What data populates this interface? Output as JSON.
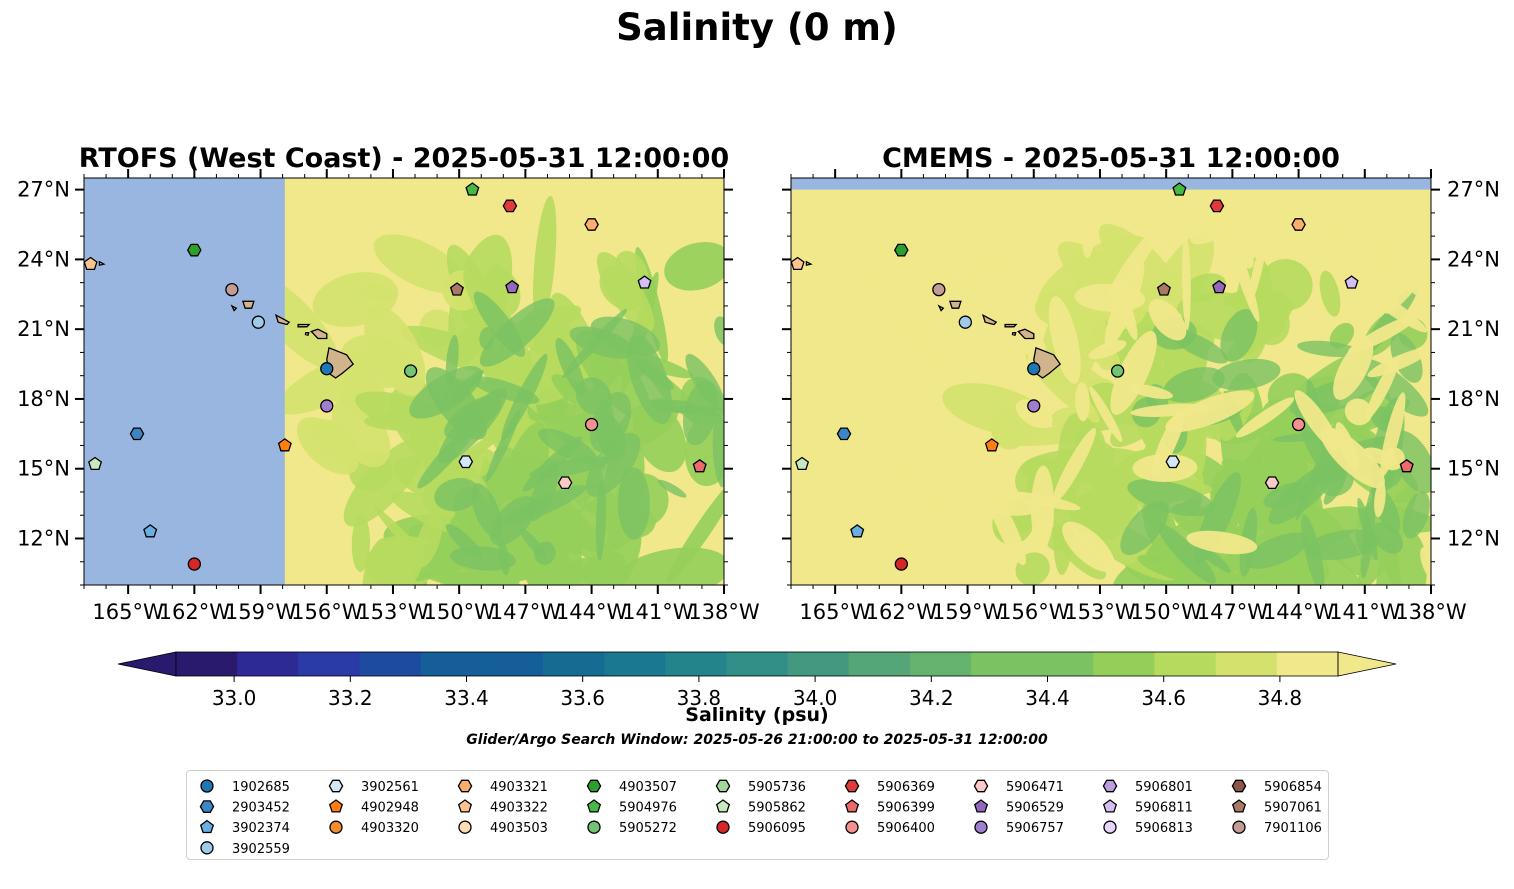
{
  "title": "Salinity (0 m)",
  "colors": {
    "land_fill": "#d2b48c",
    "out_of_domain": "#98b6e0",
    "salinity_levels": [
      "#2a1a6e",
      "#2d2a96",
      "#2a3aa6",
      "#1d4b9e",
      "#155e98",
      "#166b93",
      "#1a7890",
      "#23848c",
      "#318f87",
      "#42997f",
      "#54a577",
      "#66b36f",
      "#7bc263",
      "#95cf5a",
      "#b6da5e",
      "#d4e26d",
      "#f0e88a"
    ]
  },
  "chart_data": [
    {
      "type": "contour-map",
      "title": "RTOFS (West Coast) - 2025-05-31 12:00:00",
      "model": "RTOFS",
      "xlim": [
        -167,
        -138
      ],
      "ylim": [
        10,
        27.5
      ],
      "xticks": [
        "165°W",
        "162°W",
        "159°W",
        "156°W",
        "153°W",
        "150°W",
        "147°W",
        "144°W",
        "141°W",
        "138°W"
      ],
      "yticks": [
        "12°N",
        "15°N",
        "18°N",
        "21°N",
        "24°N",
        "27°N"
      ],
      "domain_west_edge_lon": -157.9
    },
    {
      "type": "contour-map",
      "title": "CMEMS - 2025-05-31 12:00:00",
      "model": "CMEMS",
      "xlim": [
        -167,
        -138
      ],
      "ylim": [
        10,
        27.5
      ],
      "xticks": [
        "165°W",
        "162°W",
        "159°W",
        "156°W",
        "153°W",
        "150°W",
        "147°W",
        "144°W",
        "141°W",
        "138°W"
      ],
      "yticks": [
        "12°N",
        "15°N",
        "18°N",
        "21°N",
        "24°N",
        "27°N"
      ],
      "domain_north_edge_lat": 27
    }
  ],
  "colorbar": {
    "label": "Salinity (psu)",
    "min": 32.9,
    "max": 34.9,
    "ticks": [
      "33.0",
      "33.2",
      "33.4",
      "33.6",
      "33.8",
      "34.0",
      "34.2",
      "34.4",
      "34.6",
      "34.8"
    ],
    "extend": "both"
  },
  "search_window": "Glider/Argo Search Window: 2025-05-26 21:00:00 to 2025-05-31 12:00:00",
  "floats": [
    {
      "id": "1902685",
      "marker": "circle",
      "color": "#1f77b4",
      "lon": -156.0,
      "lat": 19.3
    },
    {
      "id": "2903452",
      "marker": "hexagon",
      "color": "#3d86c6",
      "lon": -164.6,
      "lat": 16.5
    },
    {
      "id": "3902374",
      "marker": "pentagon",
      "color": "#6aaee2",
      "lon": -164.0,
      "lat": 12.3
    },
    {
      "id": "3902559",
      "marker": "circle",
      "color": "#9fcbe9",
      "lon": -159.1,
      "lat": 21.3
    },
    {
      "id": "3902561",
      "marker": "hexagon",
      "color": "#d2e8f8",
      "lon": -149.7,
      "lat": 15.3
    },
    {
      "id": "4902948",
      "marker": "pentagon",
      "color": "#ff7f0e",
      "lon": -157.9,
      "lat": 16.0
    },
    {
      "id": "4903320",
      "marker": "circle",
      "color": "#f28e2b",
      "lon": null,
      "lat": null
    },
    {
      "id": "4903321",
      "marker": "hexagon",
      "color": "#fdae6b",
      "lon": -144.0,
      "lat": 25.5
    },
    {
      "id": "4903322",
      "marker": "pentagon",
      "color": "#fdc48f",
      "lon": -166.7,
      "lat": 23.8
    },
    {
      "id": "4903503",
      "marker": "circle",
      "color": "#feddb5",
      "lon": null,
      "lat": null
    },
    {
      "id": "4903507",
      "marker": "hexagon",
      "color": "#2ca02c",
      "lon": -162.0,
      "lat": 24.4
    },
    {
      "id": "5904976",
      "marker": "pentagon",
      "color": "#45b845",
      "lon": -149.4,
      "lat": 27.0
    },
    {
      "id": "5905272",
      "marker": "circle",
      "color": "#74c476",
      "lon": -152.2,
      "lat": 19.2
    },
    {
      "id": "5905736",
      "marker": "hexagon",
      "color": "#a1d99b",
      "lon": null,
      "lat": null
    },
    {
      "id": "5905862",
      "marker": "pentagon",
      "color": "#c7e9c0",
      "lon": -166.5,
      "lat": 15.2
    },
    {
      "id": "5906095",
      "marker": "circle",
      "color": "#d62728",
      "lon": -162.0,
      "lat": 10.9
    },
    {
      "id": "5906369",
      "marker": "hexagon",
      "color": "#e03a3c",
      "lon": -147.7,
      "lat": 26.3
    },
    {
      "id": "5906399",
      "marker": "pentagon",
      "color": "#ec6a6c",
      "lon": -139.1,
      "lat": 15.1
    },
    {
      "id": "5906400",
      "marker": "circle",
      "color": "#f4918f",
      "lon": -144.0,
      "lat": 16.9
    },
    {
      "id": "5906471",
      "marker": "hexagon",
      "color": "#fbc9c7",
      "lon": -145.2,
      "lat": 14.4
    },
    {
      "id": "5906529",
      "marker": "pentagon",
      "color": "#9467bd",
      "lon": -147.6,
      "lat": 22.8
    },
    {
      "id": "5906757",
      "marker": "circle",
      "color": "#a17dd0",
      "lon": -156.0,
      "lat": 17.7
    },
    {
      "id": "5906801",
      "marker": "hexagon",
      "color": "#bd9ee0",
      "lon": null,
      "lat": null
    },
    {
      "id": "5906811",
      "marker": "pentagon",
      "color": "#d3bff4",
      "lon": -141.6,
      "lat": 23.0
    },
    {
      "id": "5906813",
      "marker": "circle",
      "color": "#e7d4fb",
      "lon": null,
      "lat": null
    },
    {
      "id": "5906854",
      "marker": "hexagon",
      "color": "#8c564b",
      "lon": null,
      "lat": null
    },
    {
      "id": "5907061",
      "marker": "pentagon",
      "color": "#a97866",
      "lon": -150.1,
      "lat": 22.7
    },
    {
      "id": "7901106",
      "marker": "circle",
      "color": "#c49c94",
      "lon": -160.3,
      "lat": 22.7
    }
  ]
}
